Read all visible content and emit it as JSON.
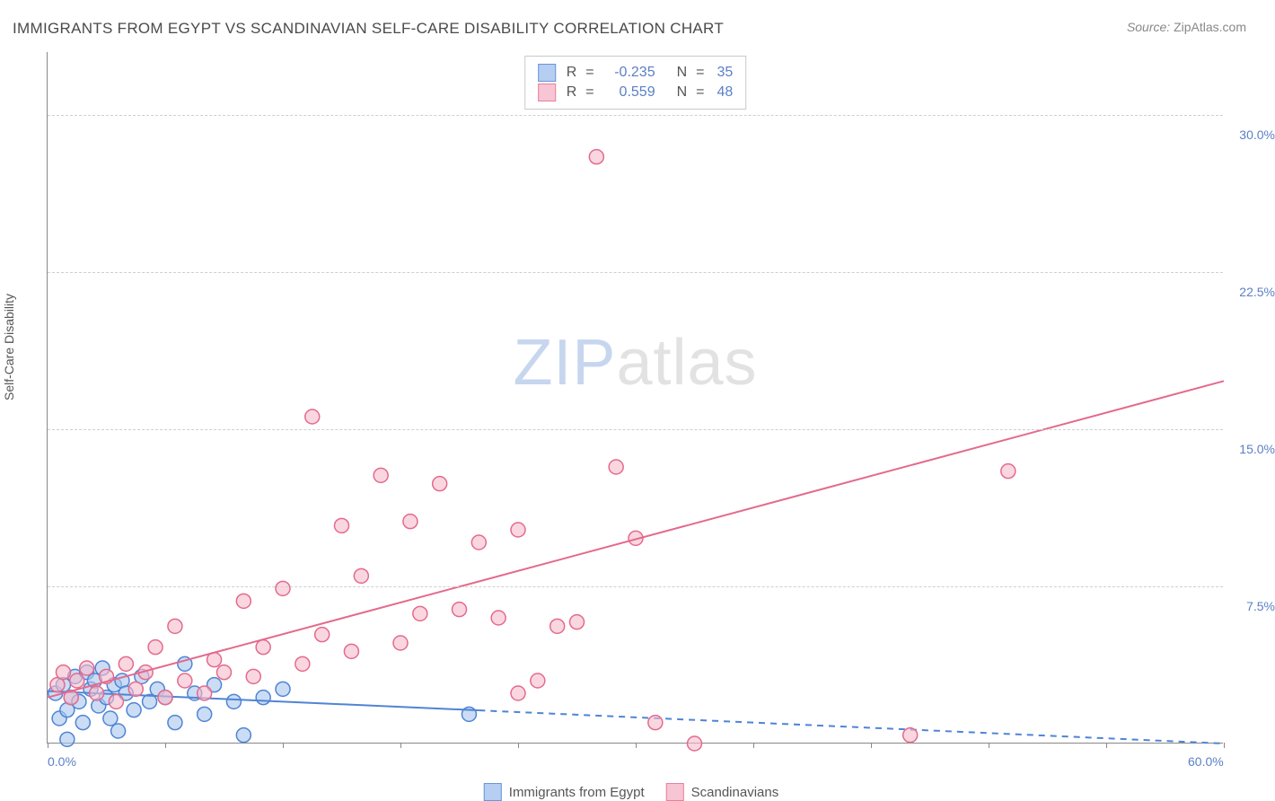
{
  "title": "IMMIGRANTS FROM EGYPT VS SCANDINAVIAN SELF-CARE DISABILITY CORRELATION CHART",
  "source_label": "Source:",
  "source_value": "ZipAtlas.com",
  "watermark_a": "ZIP",
  "watermark_b": "atlas",
  "y_axis_title": "Self-Care Disability",
  "chart": {
    "type": "scatter",
    "xlim": [
      0,
      60
    ],
    "ylim": [
      0,
      33
    ],
    "xtick_positions": [
      0,
      6,
      12,
      18,
      24,
      30,
      36,
      42,
      48,
      54,
      60
    ],
    "y_gridlines": [
      7.5,
      15.0,
      22.5,
      30.0
    ],
    "y_tick_labels": [
      "7.5%",
      "15.0%",
      "22.5%",
      "30.0%"
    ],
    "x_tick_labels": {
      "0": "0.0%",
      "60": "60.0%"
    },
    "background_color": "#ffffff",
    "grid_color": "#cfcfcf",
    "axis_color": "#888888",
    "tick_label_color": "#5b7fc7",
    "marker_radius": 8,
    "marker_stroke_width": 1.5,
    "marker_fill_opacity": 0.25,
    "trend_line_width": 2,
    "series": [
      {
        "name": "Immigrants from Egypt",
        "color_stroke": "#4f84d6",
        "color_fill": "#a9c6ef",
        "R": "-0.235",
        "N": "35",
        "trend": {
          "x1": 0,
          "y1": 2.5,
          "x2": 60,
          "y2": 0.0,
          "solid_until_x": 22
        },
        "points": [
          [
            0.4,
            2.4
          ],
          [
            0.6,
            1.2
          ],
          [
            0.8,
            2.8
          ],
          [
            1.0,
            1.6
          ],
          [
            1.0,
            0.2
          ],
          [
            1.2,
            2.2
          ],
          [
            1.4,
            3.2
          ],
          [
            1.6,
            2.0
          ],
          [
            1.8,
            1.0
          ],
          [
            2.0,
            3.4
          ],
          [
            2.2,
            2.6
          ],
          [
            2.4,
            3.0
          ],
          [
            2.6,
            1.8
          ],
          [
            2.8,
            3.6
          ],
          [
            3.0,
            2.2
          ],
          [
            3.2,
            1.2
          ],
          [
            3.4,
            2.8
          ],
          [
            3.6,
            0.6
          ],
          [
            3.8,
            3.0
          ],
          [
            4.0,
            2.4
          ],
          [
            4.4,
            1.6
          ],
          [
            4.8,
            3.2
          ],
          [
            5.2,
            2.0
          ],
          [
            5.6,
            2.6
          ],
          [
            6.0,
            2.2
          ],
          [
            6.5,
            1.0
          ],
          [
            7.0,
            3.8
          ],
          [
            7.5,
            2.4
          ],
          [
            8.0,
            1.4
          ],
          [
            8.5,
            2.8
          ],
          [
            9.5,
            2.0
          ],
          [
            10.0,
            0.4
          ],
          [
            11.0,
            2.2
          ],
          [
            12.0,
            2.6
          ],
          [
            21.5,
            1.4
          ]
        ]
      },
      {
        "name": "Scandinavians",
        "color_stroke": "#e46a8b",
        "color_fill": "#f6bccc",
        "R": "0.559",
        "N": "48",
        "trend": {
          "x1": 0,
          "y1": 2.2,
          "x2": 60,
          "y2": 17.3,
          "solid_until_x": 60
        },
        "points": [
          [
            0.5,
            2.8
          ],
          [
            0.8,
            3.4
          ],
          [
            1.2,
            2.2
          ],
          [
            1.5,
            3.0
          ],
          [
            2.0,
            3.6
          ],
          [
            2.5,
            2.4
          ],
          [
            3.0,
            3.2
          ],
          [
            3.5,
            2.0
          ],
          [
            4.0,
            3.8
          ],
          [
            4.5,
            2.6
          ],
          [
            5.0,
            3.4
          ],
          [
            5.5,
            4.6
          ],
          [
            6.0,
            2.2
          ],
          [
            6.5,
            5.6
          ],
          [
            7.0,
            3.0
          ],
          [
            8.0,
            2.4
          ],
          [
            8.5,
            4.0
          ],
          [
            9.0,
            3.4
          ],
          [
            10.0,
            6.8
          ],
          [
            10.5,
            3.2
          ],
          [
            11.0,
            4.6
          ],
          [
            12.0,
            7.4
          ],
          [
            13.0,
            3.8
          ],
          [
            13.5,
            15.6
          ],
          [
            14.0,
            5.2
          ],
          [
            15.0,
            10.4
          ],
          [
            15.5,
            4.4
          ],
          [
            16.0,
            8.0
          ],
          [
            17.0,
            12.8
          ],
          [
            18.0,
            4.8
          ],
          [
            18.5,
            10.6
          ],
          [
            19.0,
            6.2
          ],
          [
            20.0,
            12.4
          ],
          [
            21.0,
            6.4
          ],
          [
            22.0,
            9.6
          ],
          [
            23.0,
            6.0
          ],
          [
            24.0,
            10.2
          ],
          [
            25.0,
            3.0
          ],
          [
            26.0,
            5.6
          ],
          [
            27.0,
            5.8
          ],
          [
            28.0,
            28.0
          ],
          [
            29.0,
            13.2
          ],
          [
            30.0,
            9.8
          ],
          [
            31.0,
            1.0
          ],
          [
            33.0,
            0.0
          ],
          [
            44.0,
            0.4
          ],
          [
            49.0,
            13.0
          ],
          [
            24.0,
            2.4
          ]
        ]
      }
    ]
  },
  "bottom_legend": [
    {
      "label": "Immigrants from Egypt",
      "stroke": "#4f84d6",
      "fill": "#a9c6ef"
    },
    {
      "label": "Scandinavians",
      "stroke": "#e46a8b",
      "fill": "#f6bccc"
    }
  ]
}
